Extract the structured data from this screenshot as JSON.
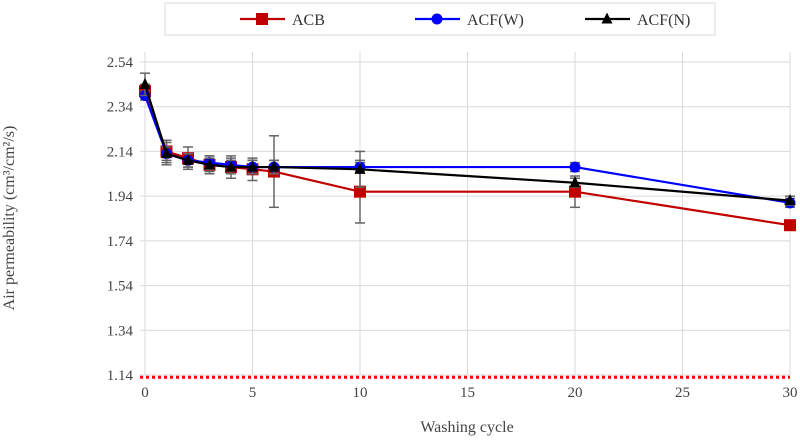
{
  "chart_data": {
    "type": "line",
    "title": "",
    "xlabel": "Washing cycle",
    "ylabel": "Air permeability (cm³/cm²/s)",
    "xlim": [
      0,
      30
    ],
    "ylim": [
      1.14,
      2.54
    ],
    "xticks": [
      0,
      5,
      10,
      15,
      20,
      25,
      30
    ],
    "yticks": [
      1.14,
      1.34,
      1.54,
      1.74,
      1.94,
      2.14,
      2.34,
      2.54
    ],
    "x": [
      0,
      1,
      2,
      3,
      4,
      5,
      6,
      10,
      20,
      30
    ],
    "legend_position": "top",
    "grid": true,
    "series": [
      {
        "name": "ACB",
        "color": "#c00000",
        "marker": "square",
        "values": [
          2.41,
          2.14,
          2.11,
          2.08,
          2.07,
          2.06,
          2.05,
          1.96,
          1.96,
          1.81
        ],
        "errors": [
          0.03,
          0.05,
          0.05,
          0.04,
          0.05,
          0.05,
          0.16,
          0.14,
          0.07,
          0.02
        ]
      },
      {
        "name": "ACF(W)",
        "color": "#0000ff",
        "marker": "circle",
        "values": [
          2.39,
          2.13,
          2.1,
          2.09,
          2.08,
          2.07,
          2.07,
          2.07,
          2.07,
          1.91
        ],
        "errors": [
          0.02,
          0.03,
          0.03,
          0.03,
          0.03,
          0.03,
          0.03,
          0.02,
          0.02,
          0.02
        ]
      },
      {
        "name": "ACF(N)",
        "color": "#000000",
        "marker": "triangle",
        "values": [
          2.44,
          2.13,
          2.1,
          2.08,
          2.07,
          2.07,
          2.07,
          2.06,
          2.0,
          1.92
        ],
        "errors": [
          0.05,
          0.05,
          0.03,
          0.03,
          0.03,
          0.03,
          0.03,
          0.08,
          0.02,
          0.02
        ]
      }
    ],
    "reference_line": {
      "y": 1.13,
      "color": "#ff0000",
      "style": "dotted"
    }
  }
}
